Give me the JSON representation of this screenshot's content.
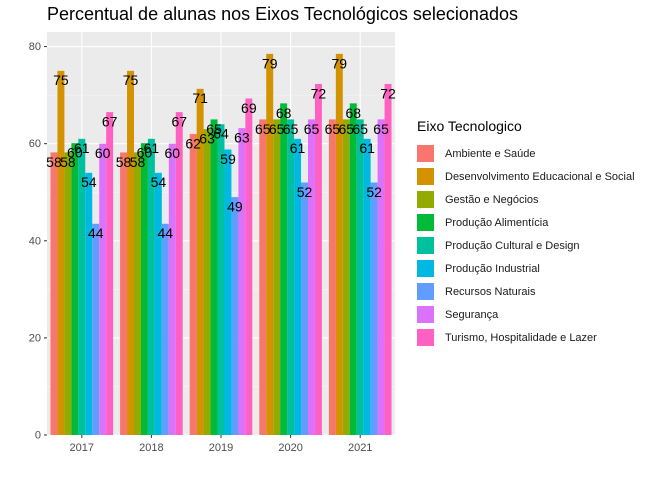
{
  "chart_data": {
    "type": "bar",
    "title": "Percentual de alunas nos Eixos Tecnológicos selecionados",
    "xlabel": "",
    "ylabel": "",
    "ylim": [
      0,
      83
    ],
    "yticks": [
      0,
      20,
      40,
      60,
      80
    ],
    "categories": [
      "2017",
      "2018",
      "2019",
      "2020",
      "2021"
    ],
    "legend_title": "Eixo Tecnologico",
    "legend_position": "right",
    "series": [
      {
        "name": "Ambiente e Saúde",
        "color": "#F8766D",
        "values": [
          58.2,
          58.2,
          62,
          65,
          65
        ],
        "labels": [
          "58",
          "58",
          "62",
          "65",
          "65"
        ]
      },
      {
        "name": "Desenvolvimento Educacional e Social",
        "color": "#D39200",
        "values": [
          75,
          75,
          71.3,
          78.5,
          78.5
        ],
        "labels": [
          "75",
          "75",
          "71",
          "79",
          "79"
        ]
      },
      {
        "name": "Gestão e Negócios",
        "color": "#93AA00",
        "values": [
          58.2,
          58.2,
          63,
          65,
          65
        ],
        "labels": [
          "58",
          "58",
          "63",
          "65",
          "65"
        ]
      },
      {
        "name": "Produção Alimentícia",
        "color": "#00BA38",
        "values": [
          60.1,
          60.1,
          65,
          68.3,
          68.3
        ],
        "labels": [
          "60",
          "60",
          "65",
          "68",
          "68"
        ]
      },
      {
        "name": "Produção Cultural e Design",
        "color": "#00C19F",
        "values": [
          61,
          61,
          64,
          65,
          65
        ],
        "labels": [
          "61",
          "61",
          "64",
          "65",
          "65"
        ]
      },
      {
        "name": "Produção Industrial",
        "color": "#00B9E3",
        "values": [
          54,
          54,
          58.8,
          61,
          61
        ],
        "labels": [
          "54",
          "54",
          "59",
          "61",
          "61"
        ]
      },
      {
        "name": "Recursos Naturais",
        "color": "#619CFF",
        "values": [
          43.5,
          43.5,
          49,
          52,
          52
        ],
        "labels": [
          "44",
          "44",
          "49",
          "52",
          "52"
        ]
      },
      {
        "name": "Segurança",
        "color": "#DB72FB",
        "values": [
          60,
          60,
          63.2,
          65,
          65
        ],
        "labels": [
          "60",
          "60",
          "63",
          "65",
          "65"
        ]
      },
      {
        "name": "Turismo, Hospitalidade e Lazer",
        "color": "#FF61C3",
        "values": [
          66.5,
          66.5,
          69.3,
          72.3,
          72.3
        ],
        "labels": [
          "67",
          "67",
          "69",
          "72",
          "72"
        ]
      }
    ]
  }
}
